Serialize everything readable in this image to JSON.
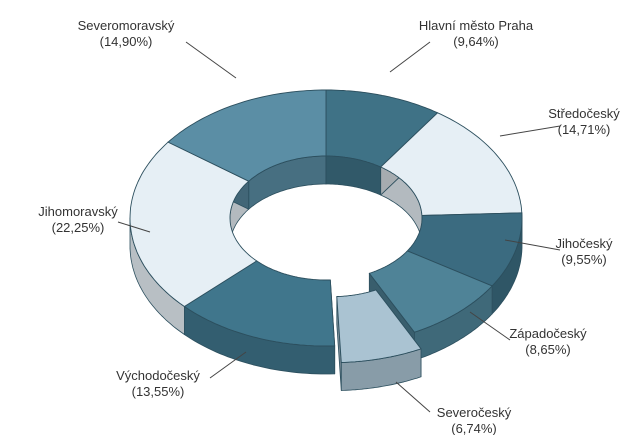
{
  "chart_data": {
    "type": "pie",
    "donut": true,
    "three_d": true,
    "exploded": [
      "Severočeský"
    ],
    "title": "",
    "legend": "none",
    "slices": [
      {
        "label": "Hlavní město Praha",
        "pct_label": "(9,64%)",
        "value": 9.64,
        "color": "#3f7286"
      },
      {
        "label": "Středočeský",
        "pct_label": "(14,71%)",
        "value": 14.71,
        "color": "#e6eff5"
      },
      {
        "label": "Jihočeský",
        "pct_label": "(9,55%)",
        "value": 9.55,
        "color": "#3b6b80"
      },
      {
        "label": "Západočeský",
        "pct_label": "(8,65%)",
        "value": 8.65,
        "color": "#4f8397"
      },
      {
        "label": "Severočeský",
        "pct_label": "(6,74%)",
        "value": 6.74,
        "color": "#aac3d2"
      },
      {
        "label": "Východočeský",
        "pct_label": "(13,55%)",
        "value": 13.55,
        "color": "#40768c"
      },
      {
        "label": "Jihomoravský",
        "pct_label": "(22,25%)",
        "value": 22.25,
        "color": "#e6eff5"
      },
      {
        "label": "Severomoravský",
        "pct_label": "(14,90%)",
        "value": 14.9,
        "color": "#5b8ea5"
      }
    ]
  }
}
